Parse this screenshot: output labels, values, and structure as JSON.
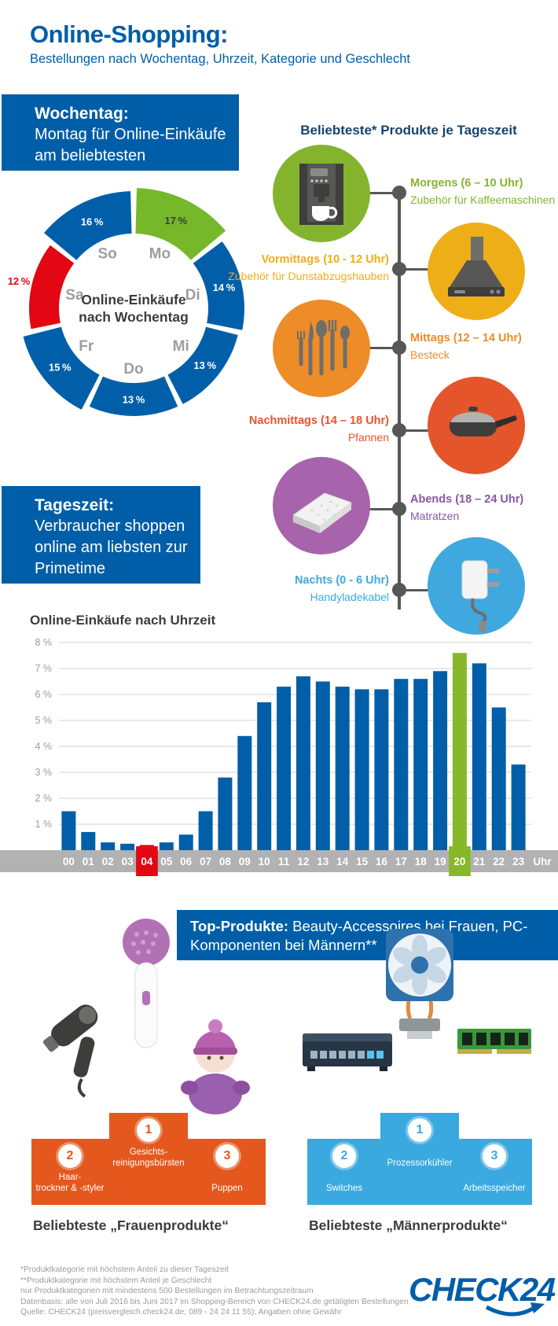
{
  "header": {
    "title": "Online-Shopping:",
    "subtitle": "Bestellungen nach Wochentag, Uhrzeit, Kategorie und Geschlecht"
  },
  "weekday_box": {
    "title": "Wochentag:",
    "text": "Montag für Online-Einkäufe am beliebtesten"
  },
  "daytime_box": {
    "title": "Tageszeit:",
    "text": "Verbraucher shoppen online am liebsten zur Primetime"
  },
  "chart_data": [
    {
      "type": "donut",
      "title": "Online-Einkäufe nach Wochentag",
      "center_label_lines": [
        "Online-Einkäufe",
        "nach Wochentag"
      ],
      "categories": [
        "Mo",
        "Di",
        "Mi",
        "Do",
        "Fr",
        "Sa",
        "So"
      ],
      "values": [
        17,
        14,
        13,
        13,
        15,
        12,
        16
      ],
      "unit": "%",
      "max_category": "Mo",
      "min_category": "Sa",
      "legend_position": "labels-inside",
      "colors": {
        "default": "#005fa8",
        "max": "#76b82a",
        "min": "#e30613",
        "day_label": "#9d9d9c",
        "center_text": "#3c3c3b",
        "pct_on_max": "#3c3c3b",
        "pct_on_default": "#ffffff"
      }
    },
    {
      "type": "bar",
      "title": "Online-Einkäufe nach Uhrzeit",
      "x": [
        "00",
        "01",
        "02",
        "03",
        "04",
        "05",
        "06",
        "07",
        "08",
        "09",
        "10",
        "11",
        "12",
        "13",
        "14",
        "15",
        "16",
        "17",
        "18",
        "19",
        "20",
        "21",
        "22",
        "23"
      ],
      "x_suffix_label": "Uhr",
      "values": [
        1.5,
        0.7,
        0.3,
        0.25,
        0.2,
        0.3,
        0.6,
        1.5,
        2.8,
        4.4,
        5.7,
        6.3,
        6.7,
        6.5,
        6.3,
        6.2,
        6.2,
        6.6,
        6.6,
        6.9,
        7.6,
        7.2,
        5.5,
        3.3
      ],
      "unit": "%",
      "ylim": [
        0,
        8
      ],
      "yticks": [
        "1 %",
        "2 %",
        "3 %",
        "4 %",
        "5 %",
        "6 %",
        "7 %",
        "8 %"
      ],
      "grid": true,
      "max_index": 20,
      "min_index": 4,
      "colors": {
        "default": "#005fa8",
        "max": "#86b829",
        "min": "#e30613",
        "axis_strip": "#b2b2b2",
        "grid": "#dcdcdc",
        "tick_text": "#9d9d9c",
        "axis_text": "#ffffff"
      }
    }
  ],
  "daytime_products": {
    "title": "Beliebteste* Produkte je Tageszeit",
    "items": [
      {
        "time": "Morgens (6 – 10 Uhr)",
        "product": "Zubehör für Kaffeemaschinen",
        "color": "#84b42e",
        "icon": "coffee-machine",
        "circle_side": "left"
      },
      {
        "time": "Vormittags (10 - 12 Uhr)",
        "product": "Zubehör für Dunstabzugshauben",
        "color": "#eeae18",
        "icon": "extractor-hood",
        "circle_side": "right"
      },
      {
        "time": "Mittags (12 – 14 Uhr)",
        "product": "Besteck",
        "color": "#ee8c27",
        "icon": "cutlery",
        "circle_side": "left"
      },
      {
        "time": "Nachmittags (14 – 18 Uhr)",
        "product": "Pfannen",
        "color": "#e5552b",
        "icon": "frying-pan",
        "circle_side": "right"
      },
      {
        "time": "Abends (18 – 24 Uhr)",
        "product": "Matratzen",
        "color": "#8b56a4",
        "circle_color": "#a763ab",
        "icon": "mattress",
        "circle_side": "left"
      },
      {
        "time": "Nachts (0 - 6 Uhr)",
        "product": "Handyladekabel",
        "color": "#3fa8de",
        "icon": "phone-charger",
        "circle_side": "right"
      }
    ]
  },
  "top_products": {
    "headline_bold": "Top-Produkte:",
    "headline_rest": " Beauty-Accessoires bei Frauen, PC-Komponenten bei Männern**",
    "groups": [
      {
        "caption": "Beliebteste „Frauenprodukte“",
        "color": "#e4571d",
        "ranks": [
          {
            "rank": "2",
            "label_lines": [
              "Haar-",
              "trockner & -styler"
            ],
            "icon": "hair-dryer"
          },
          {
            "rank": "1",
            "label_lines": [
              "Gesichts-",
              "reinigungsbürsten"
            ],
            "icon": "facial-brush"
          },
          {
            "rank": "3",
            "label_lines": [
              "Puppen"
            ],
            "icon": "doll"
          }
        ]
      },
      {
        "caption": "Beliebteste „Männerprodukte“",
        "color": "#3aa9e0",
        "ranks": [
          {
            "rank": "2",
            "label_lines": [
              "Switches"
            ],
            "icon": "network-switch"
          },
          {
            "rank": "1",
            "label_lines": [
              "Prozessorkühler"
            ],
            "icon": "cpu-cooler"
          },
          {
            "rank": "3",
            "label_lines": [
              "Arbeitsspeicher"
            ],
            "icon": "ram-module"
          }
        ]
      }
    ]
  },
  "footnotes": [
    "*Produktkategorie mit höchstem Anteil zu dieser Tageszeit",
    "**Produktkategorie mit höchstem Anteil je Geschlecht",
    "nur Produktkategorien mit mindestens 500 Bestellungen im Betrachtungszeitraum",
    "Datenbasis: alle von Juli 2016 bis Juni 2017 im Shopping-Bereich von CHECK24.de getätigten Bestellungen",
    "Quelle: CHECK24 (preisvergleich.check24.de; 089 - 24 24 11 55); Angaben ohne Gewähr"
  ],
  "logo_text": "CHECK24"
}
